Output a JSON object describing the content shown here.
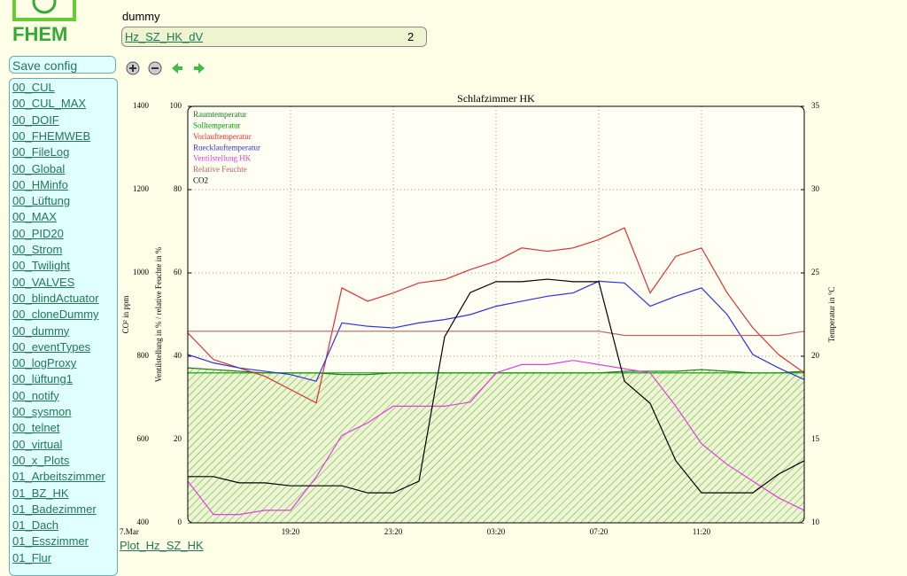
{
  "logo": {
    "text": "FHEM"
  },
  "sidebar": {
    "save": "Save config",
    "rooms": [
      "00_CUL",
      "00_CUL_MAX",
      "00_DOIF",
      "00_FHEMWEB",
      "00_FileLog",
      "00_Global",
      "00_HMinfo",
      "00_Lüftung",
      "00_MAX",
      "00_PID20",
      "00_Strom",
      "00_Twilight",
      "00_VALVES",
      "00_blindActuator",
      "00_cloneDummy",
      "00_dummy",
      "00_eventTypes",
      "00_logProxy",
      "00_lüftung1",
      "00_notify",
      "00_sysmon",
      "00_telnet",
      "00_virtual",
      "00_x_Plots",
      "01_Arbeitszimmer",
      "01_BZ_HK",
      "01_Badezimmer",
      "01_Dach",
      "01_Esszimmer",
      "01_Flur"
    ]
  },
  "header": {
    "room": "dummy",
    "device": {
      "name": "Hz_SZ_HK_dV",
      "value": 2
    }
  },
  "chart_data": {
    "type": "line",
    "title": "Schlafzimmer HK",
    "y_label": "Ventilstellung in % / relative Feuchte in %",
    "y2_label": "Temperatur in °C",
    "y3_label": "CO² in ppm",
    "categories": [
      "7.Mar",
      null,
      null,
      null,
      "19:20",
      null,
      null,
      null,
      "23:20",
      null,
      null,
      null,
      "03:20",
      null,
      null,
      null,
      "07:20",
      null,
      null,
      null,
      "11:20",
      null,
      null,
      null,
      null
    ],
    "ylim": [
      0,
      100
    ],
    "yticks": [
      0,
      20,
      40,
      60,
      80,
      100
    ],
    "y2lim": [
      10,
      35
    ],
    "y2ticks": [
      10,
      15,
      20,
      25,
      30,
      35
    ],
    "y3lim": [
      400,
      1400
    ],
    "y3ticks": [
      400,
      600,
      800,
      1000,
      1200,
      1400
    ],
    "grid": true,
    "series": [
      {
        "name": "Raumtemperatur",
        "color": "#1a7a1a",
        "axis": "y2",
        "fill": true,
        "values": [
          19.3,
          19.2,
          19.1,
          19.0,
          19.0,
          19.0,
          18.9,
          18.9,
          19.0,
          19.0,
          19.0,
          19.0,
          19.0,
          19.0,
          19.0,
          19.0,
          19.0,
          19.1,
          19.1,
          19.1,
          19.2,
          19.1,
          19.0,
          19.0,
          19.1
        ]
      },
      {
        "name": "Solltemperatur",
        "color": "#00a000",
        "axis": "y2",
        "values": [
          19.0,
          19.0,
          19.0,
          19.0,
          19.0,
          19.0,
          19.0,
          19.0,
          19.0,
          19.0,
          19.0,
          19.0,
          19.0,
          19.0,
          19.0,
          19.0,
          19.0,
          19.0,
          19.0,
          19.0,
          19.0,
          19.0,
          19.0,
          19.0,
          19.0
        ]
      },
      {
        "name": "Vorlauftemperatur",
        "color": "#e03030",
        "axis": "y2",
        "values": [
          21.4,
          19.8,
          19.3,
          18.8,
          18.0,
          17.2,
          24.1,
          23.3,
          23.8,
          24.4,
          24.6,
          25.2,
          25.7,
          26.5,
          26.3,
          26.5,
          27.0,
          27.7,
          23.8,
          26.0,
          26.5,
          23.8,
          21.7,
          20.1,
          19.0
        ]
      },
      {
        "name": "Ruecklauftemperatur",
        "color": "#3030e0",
        "axis": "y2",
        "values": [
          20.1,
          19.6,
          19.3,
          19.1,
          18.9,
          18.5,
          22.0,
          21.8,
          21.7,
          22.0,
          22.2,
          22.5,
          23.0,
          23.3,
          23.6,
          23.8,
          24.5,
          24.4,
          23.0,
          23.6,
          24.1,
          22.5,
          20.1,
          19.3,
          18.6
        ]
      },
      {
        "name": "Ventilstellung HK",
        "color": "#e040e0",
        "axis": "y",
        "values": [
          10,
          2,
          2,
          3,
          3,
          11,
          21,
          24,
          28,
          28,
          28,
          29,
          36,
          38,
          38,
          39,
          38,
          37,
          36,
          28,
          19,
          14,
          10,
          6,
          3
        ]
      },
      {
        "name": "Relative Feuchte",
        "color": "#c06060",
        "axis": "y",
        "values": [
          46,
          46,
          46,
          46,
          46,
          46,
          46,
          46,
          46,
          46,
          46,
          46,
          46,
          46,
          46,
          46,
          46,
          45,
          45,
          45,
          45,
          45,
          45,
          45,
          46
        ]
      },
      {
        "name": "CO2",
        "color": "#000000",
        "axis": "y3",
        "values": [
          511,
          511,
          496,
          496,
          489,
          489,
          489,
          472,
          472,
          500,
          847,
          953,
          979,
          979,
          985,
          979,
          979,
          740,
          687,
          549,
          472,
          472,
          472,
          517,
          549
        ]
      }
    ]
  },
  "footer": {
    "plot_link": "Plot_Hz_SZ_HK"
  }
}
